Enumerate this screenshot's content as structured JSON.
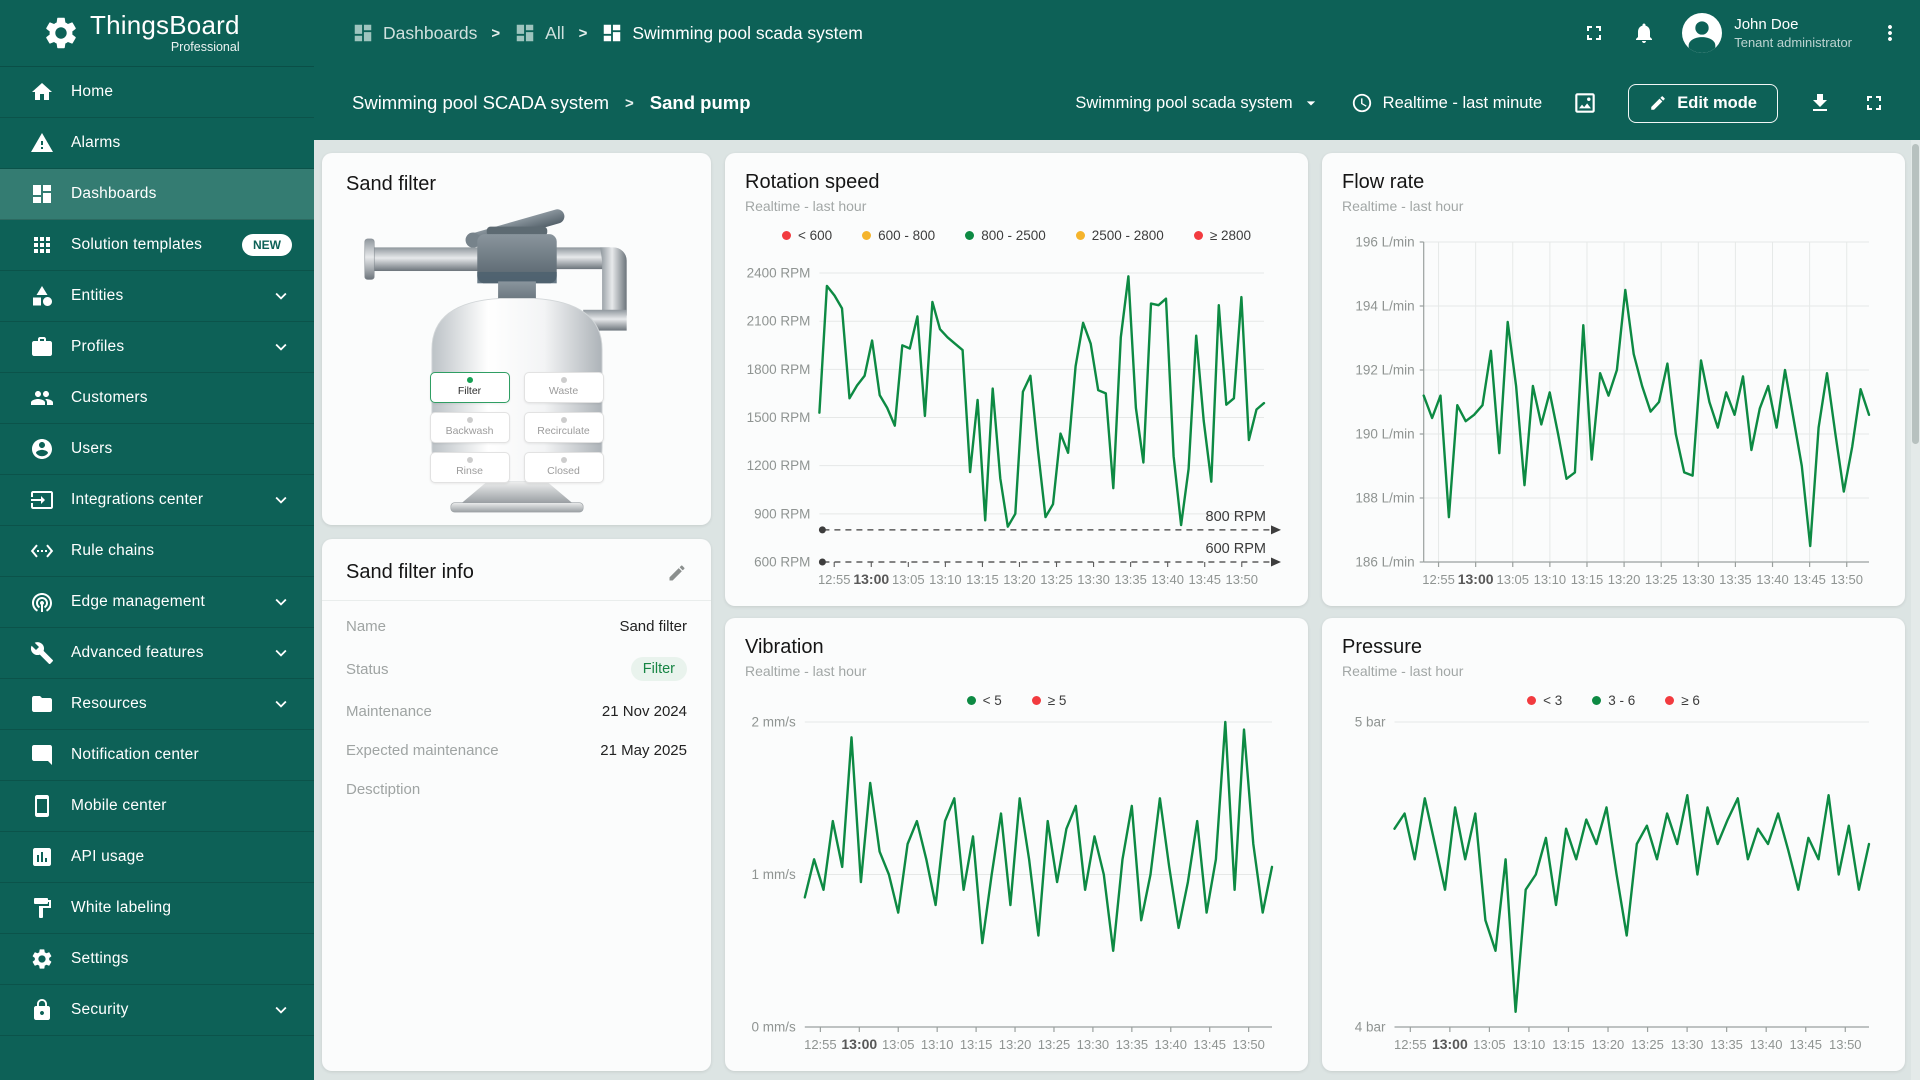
{
  "brand": {
    "name": "ThingsBoard",
    "subtitle": "Professional"
  },
  "topbar": {
    "separator": ">",
    "breadcrumbs": [
      {
        "label": "Dashboards",
        "icon": "dashboards"
      },
      {
        "label": "All",
        "icon": "dashboards"
      },
      {
        "label": "Swimming pool scada system",
        "icon": "dashboards"
      }
    ],
    "user": {
      "name": "John Doe",
      "role": "Tenant administrator"
    }
  },
  "toolbar": {
    "path": [
      {
        "label": "Swimming pool SCADA system"
      },
      {
        "label": "Sand pump"
      }
    ],
    "separator": ">",
    "dashboard_select": "Swimming pool scada system",
    "timewindow": "Realtime - last minute",
    "edit_button": "Edit mode"
  },
  "sidebar": {
    "items": [
      {
        "label": "Home",
        "icon": "home"
      },
      {
        "label": "Alarms",
        "icon": "warning"
      },
      {
        "label": "Dashboards",
        "icon": "dashboards",
        "active": true
      },
      {
        "label": "Solution templates",
        "icon": "apps",
        "badge": "NEW"
      },
      {
        "label": "Entities",
        "icon": "entities",
        "chevron": true
      },
      {
        "label": "Profiles",
        "icon": "profiles",
        "chevron": true
      },
      {
        "label": "Customers",
        "icon": "customers"
      },
      {
        "label": "Users",
        "icon": "users"
      },
      {
        "label": "Integrations center",
        "icon": "integrations",
        "chevron": true
      },
      {
        "label": "Rule chains",
        "icon": "rule-chains"
      },
      {
        "label": "Edge management",
        "icon": "edge",
        "chevron": true
      },
      {
        "label": "Advanced features",
        "icon": "advanced",
        "chevron": true
      },
      {
        "label": "Resources",
        "icon": "resources",
        "chevron": true
      },
      {
        "label": "Notification center",
        "icon": "notification"
      },
      {
        "label": "Mobile center",
        "icon": "mobile"
      },
      {
        "label": "API usage",
        "icon": "api"
      },
      {
        "label": "White labeling",
        "icon": "white-labeling"
      },
      {
        "label": "Settings",
        "icon": "settings"
      },
      {
        "label": "Security",
        "icon": "security",
        "chevron": true
      }
    ]
  },
  "widgets": {
    "sand_filter": {
      "title": "Sand filter",
      "buttons": [
        {
          "label": "Filter",
          "active": true
        },
        {
          "label": "Waste"
        },
        {
          "label": "Backwash"
        },
        {
          "label": "Recirculate"
        },
        {
          "label": "Rinse"
        },
        {
          "label": "Closed"
        }
      ]
    },
    "sand_filter_info": {
      "title": "Sand filter info",
      "rows": [
        {
          "label": "Name",
          "value": "Sand filter"
        },
        {
          "label": "Status",
          "value": "Filter",
          "chip": true
        },
        {
          "label": "Maintenance",
          "value": "21 Nov 2024"
        },
        {
          "label": "Expected maintenance",
          "value": "21 May 2025"
        },
        {
          "label": "Desctiption",
          "value": ""
        }
      ]
    }
  },
  "chart_data": [
    {
      "type": "line",
      "title": "Rotation speed",
      "subtitle": "Realtime - last hour",
      "unit": "RPM",
      "legend": [
        {
          "label": "< 600",
          "color": "#f23b3f"
        },
        {
          "label": "600 - 800",
          "color": "#f5b42c"
        },
        {
          "label": "800 - 2500",
          "color": "#0d8a43"
        },
        {
          "label": "2500 - 2800",
          "color": "#f5b42c"
        },
        {
          "label": "≥ 2800",
          "color": "#f23b3f"
        }
      ],
      "line_color": "#0d8a43",
      "ylim": [
        600,
        2500
      ],
      "yticks": [
        600,
        900,
        1200,
        1500,
        1800,
        2100,
        2400
      ],
      "ytick_format": "{v} RPM",
      "thresholds": [
        {
          "value": 800,
          "label": "800 RPM"
        },
        {
          "value": 600,
          "label": "600 RPM"
        }
      ],
      "x_ticks": [
        "12:55",
        "13:00",
        "13:05",
        "13:10",
        "13:15",
        "13:20",
        "13:25",
        "13:30",
        "13:35",
        "13:40",
        "13:45",
        "13:50"
      ],
      "bold_x_tick": "13:00",
      "x_grid": false,
      "left_axis": false,
      "baseline_axis": false,
      "values": [
        1530,
        2320,
        2260,
        2180,
        1620,
        1700,
        1760,
        1980,
        1640,
        1560,
        1450,
        1950,
        1930,
        2130,
        1510,
        2220,
        2050,
        2000,
        1960,
        1920,
        1160,
        1610,
        860,
        1680,
        1120,
        820,
        900,
        1660,
        1760,
        1300,
        880,
        960,
        1400,
        1280,
        1820,
        2090,
        1960,
        1670,
        1650,
        1060,
        2000,
        2380,
        1560,
        1220,
        2210,
        2200,
        2240,
        1260,
        830,
        1180,
        2010,
        1480,
        1100,
        2200,
        1580,
        1620,
        2250,
        1360,
        1550,
        1590
      ]
    },
    {
      "type": "line",
      "title": "Flow rate",
      "subtitle": "Realtime - last hour",
      "unit": "L/min",
      "legend": [],
      "line_color": "#0d8a43",
      "ylim": [
        186,
        196
      ],
      "yticks": [
        186,
        188,
        190,
        192,
        194,
        196
      ],
      "ytick_format": "{v} L/min",
      "x_ticks": [
        "12:55",
        "13:00",
        "13:05",
        "13:10",
        "13:15",
        "13:20",
        "13:25",
        "13:30",
        "13:35",
        "13:40",
        "13:45",
        "13:50"
      ],
      "bold_x_tick": "13:00",
      "x_grid": true,
      "left_axis": true,
      "baseline_axis": true,
      "values": [
        191.2,
        190.5,
        191.2,
        187.4,
        190.9,
        190.4,
        190.6,
        190.9,
        192.6,
        189.4,
        193.5,
        191.5,
        188.4,
        191.5,
        190.3,
        191.3,
        190.0,
        188.6,
        188.8,
        193.4,
        189.2,
        191.9,
        191.2,
        192.0,
        194.5,
        192.5,
        191.5,
        190.7,
        191.0,
        192.2,
        190.0,
        188.8,
        188.7,
        192.3,
        191.0,
        190.2,
        191.3,
        190.6,
        191.8,
        189.5,
        190.8,
        191.5,
        190.2,
        192.0,
        190.5,
        189.0,
        186.5,
        190.2,
        191.9,
        190.0,
        188.2,
        189.6,
        191.4,
        190.6
      ]
    },
    {
      "type": "line",
      "title": "Vibration",
      "subtitle": "Realtime - last hour",
      "unit": "mm/s",
      "legend": [
        {
          "label": "< 5",
          "color": "#0d8a43"
        },
        {
          "label": "≥ 5",
          "color": "#f23b3f"
        }
      ],
      "line_color": "#0d8a43",
      "ylim": [
        0,
        2
      ],
      "yticks": [
        0,
        1,
        2
      ],
      "ytick_format": "{v} mm/s",
      "x_ticks": [
        "12:55",
        "13:00",
        "13:05",
        "13:10",
        "13:15",
        "13:20",
        "13:25",
        "13:30",
        "13:35",
        "13:40",
        "13:45",
        "13:50"
      ],
      "bold_x_tick": "13:00",
      "x_grid": false,
      "left_axis": false,
      "baseline_axis": true,
      "values": [
        0.85,
        1.1,
        0.9,
        1.35,
        1.05,
        1.9,
        0.95,
        1.6,
        1.15,
        1.0,
        0.75,
        1.2,
        1.35,
        1.1,
        0.8,
        1.35,
        1.5,
        0.9,
        1.25,
        0.55,
        1.0,
        1.4,
        0.8,
        1.5,
        1.1,
        0.6,
        1.35,
        0.95,
        1.3,
        1.45,
        0.9,
        1.25,
        1.0,
        0.5,
        1.1,
        1.45,
        0.7,
        1.0,
        1.5,
        1.05,
        0.65,
        0.95,
        1.35,
        0.75,
        1.1,
        2.0,
        0.9,
        1.95,
        1.2,
        0.75,
        1.05
      ]
    },
    {
      "type": "line",
      "title": "Pressure",
      "subtitle": "Realtime - last hour",
      "unit": "bar",
      "legend": [
        {
          "label": "< 3",
          "color": "#f23b3f"
        },
        {
          "label": "3 - 6",
          "color": "#0d8a43"
        },
        {
          "label": "≥ 6",
          "color": "#f23b3f"
        }
      ],
      "line_color": "#0d8a43",
      "ylim": [
        4,
        5
      ],
      "yticks": [
        4,
        5
      ],
      "ytick_format": "{v} bar",
      "x_ticks": [
        "12:55",
        "13:00",
        "13:05",
        "13:10",
        "13:15",
        "13:20",
        "13:25",
        "13:30",
        "13:35",
        "13:40",
        "13:45",
        "13:50"
      ],
      "bold_x_tick": "13:00",
      "x_grid": false,
      "left_axis": false,
      "baseline_axis": true,
      "values": [
        4.65,
        4.7,
        4.55,
        4.75,
        4.6,
        4.45,
        4.72,
        4.55,
        4.7,
        4.35,
        4.25,
        4.55,
        4.05,
        4.45,
        4.5,
        4.62,
        4.4,
        4.65,
        4.55,
        4.68,
        4.6,
        4.72,
        4.5,
        4.3,
        4.6,
        4.66,
        4.55,
        4.7,
        4.6,
        4.76,
        4.5,
        4.72,
        4.6,
        4.68,
        4.75,
        4.55,
        4.65,
        4.6,
        4.7,
        4.58,
        4.45,
        4.62,
        4.55,
        4.76,
        4.5,
        4.66,
        4.45,
        4.6
      ]
    }
  ]
}
